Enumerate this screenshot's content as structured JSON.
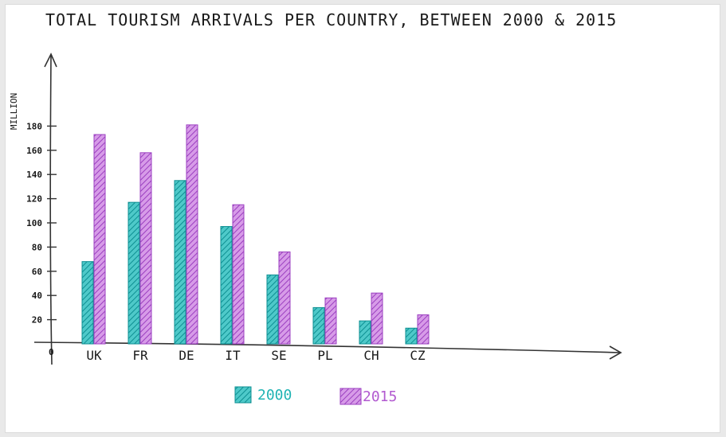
{
  "chart_data": {
    "type": "bar",
    "title": "TOTAL TOURISM ARRIVALS PER COUNTRY, BETWEEN 2000 & 2015",
    "ylabel": "MILLION",
    "xlabel": "",
    "ylim": [
      0,
      190
    ],
    "yticks": [
      20,
      40,
      60,
      80,
      100,
      120,
      140,
      160,
      180
    ],
    "origin_label": "0",
    "categories": [
      "UK",
      "FR",
      "DE",
      "IT",
      "SE",
      "PL",
      "CH",
      "CZ"
    ],
    "series": [
      {
        "name": "2000",
        "color": "#1fb3b3",
        "values": [
          68,
          117,
          135,
          97,
          57,
          30,
          19,
          13
        ]
      },
      {
        "name": "2015",
        "color": "#b25ad0",
        "values": [
          173,
          158,
          181,
          115,
          76,
          38,
          42,
          24
        ]
      }
    ],
    "legend_position": "bottom-center",
    "grid": false
  }
}
